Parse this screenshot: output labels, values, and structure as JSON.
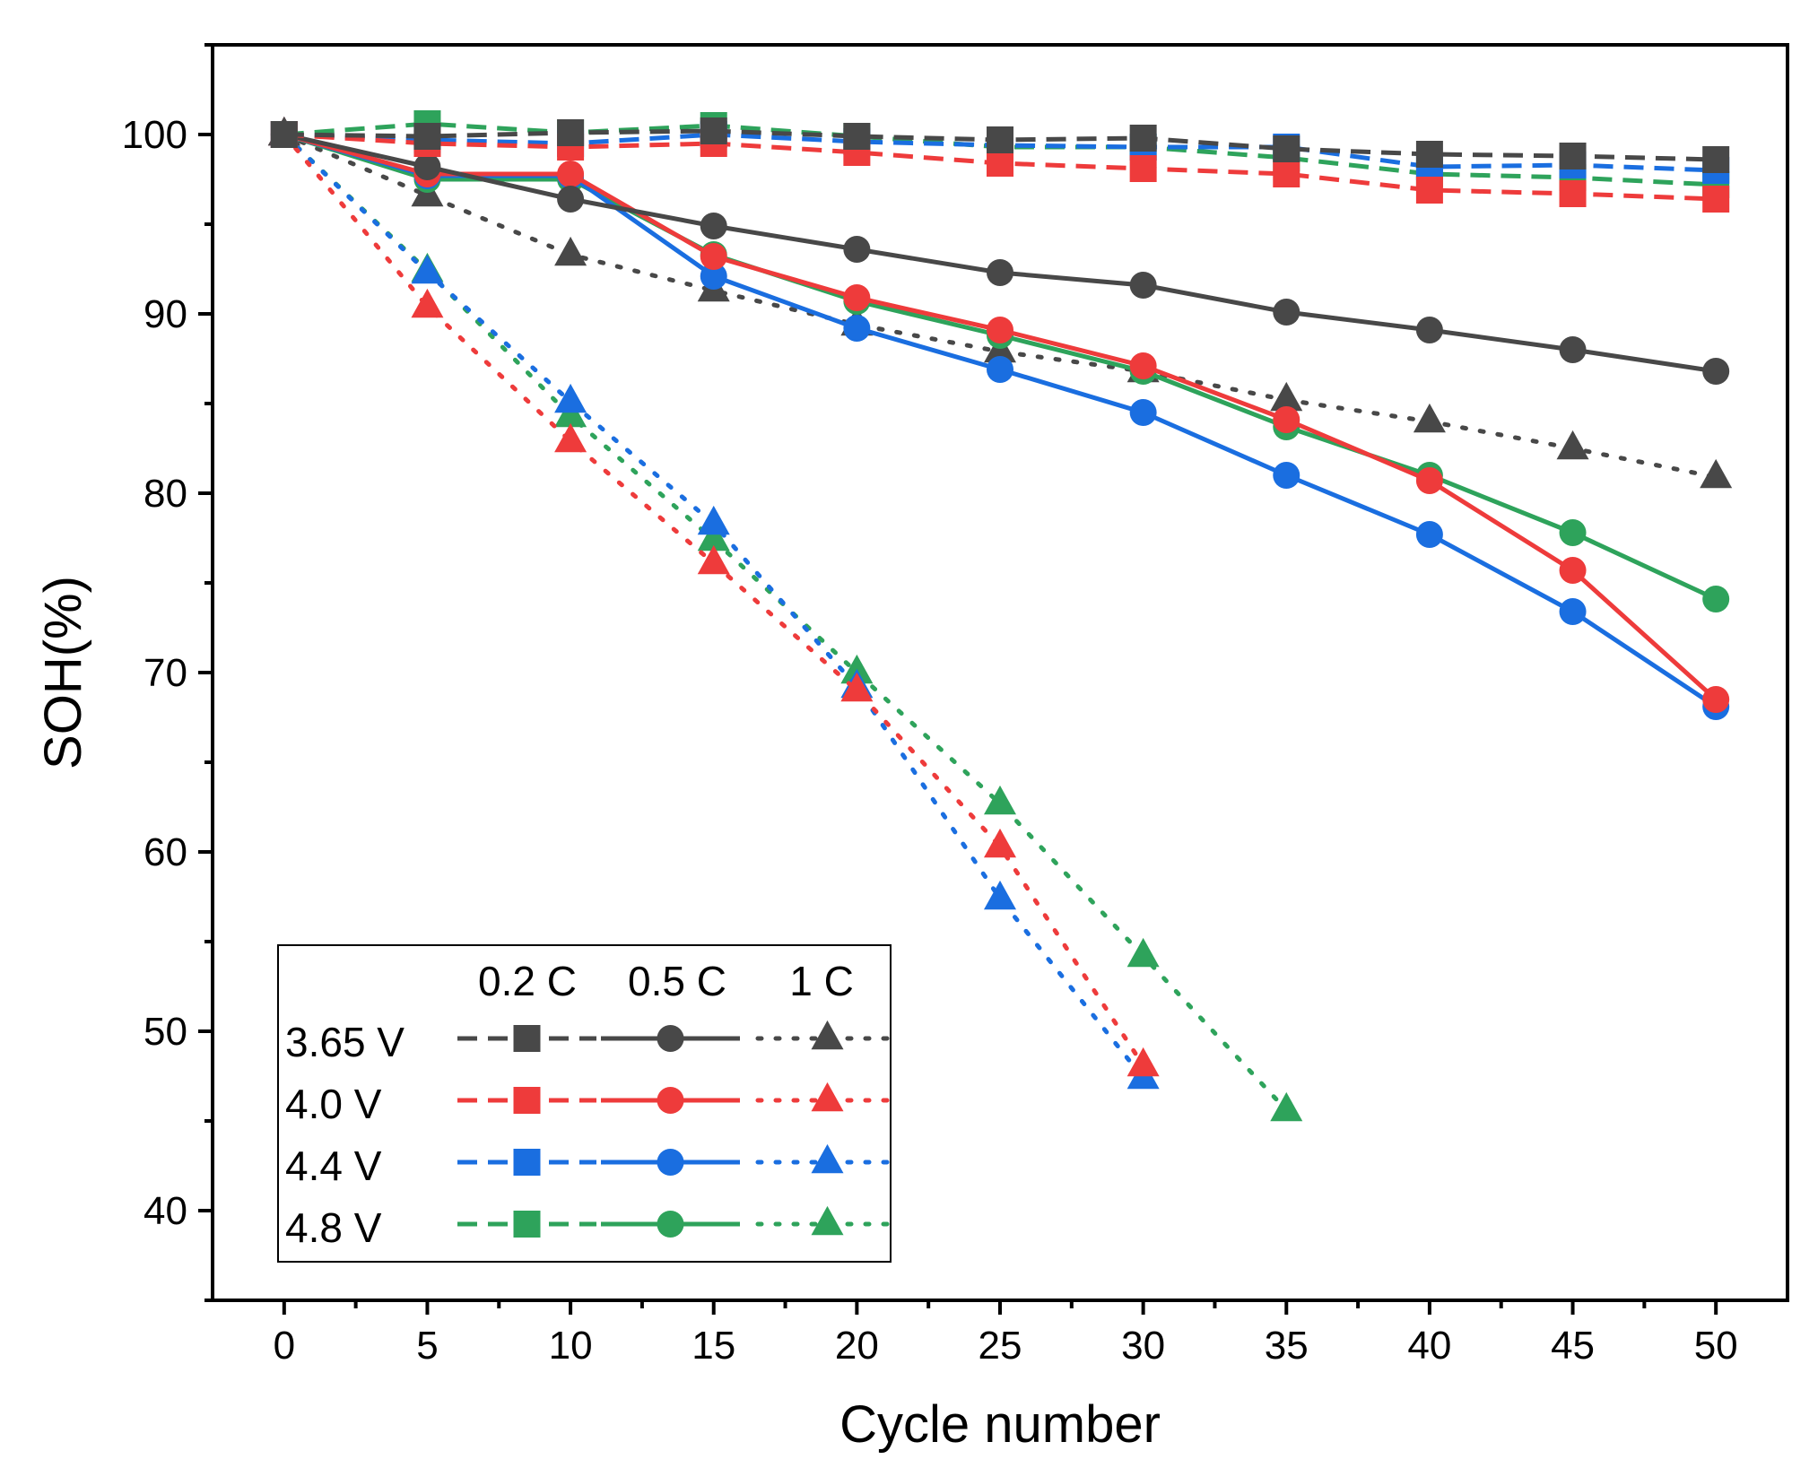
{
  "chart_data": {
    "type": "line",
    "xlabel": "Cycle number",
    "ylabel": "SOH(%)",
    "xlim": [
      -2.5,
      52.5
    ],
    "ylim": [
      35,
      105
    ],
    "x_ticks": [
      0,
      5,
      10,
      15,
      20,
      25,
      30,
      35,
      40,
      45,
      50
    ],
    "y_ticks": [
      40,
      50,
      60,
      70,
      80,
      90,
      100
    ],
    "legend": {
      "location": "bottom-left",
      "rate_headers": [
        "0.2 C",
        "0.5 C",
        "1 C"
      ],
      "voltage_labels": [
        "3.65 V",
        "4.0 V",
        "4.4 V",
        "4.8 V"
      ]
    },
    "colors": {
      "3.65 V": "#484848",
      "4.0 V": "#ee3b3b",
      "4.4 V": "#1a6ee0",
      "4.8 V": "#2ea35b"
    },
    "series": [
      {
        "name": "3.65 V 0.2 C",
        "voltage": "3.65 V",
        "rate": "0.2 C",
        "marker": "square",
        "line": "dashed",
        "x": [
          0,
          5,
          10,
          15,
          20,
          25,
          30,
          35,
          40,
          45,
          50
        ],
        "values": [
          100,
          99.9,
          100.1,
          100.2,
          99.9,
          99.7,
          99.8,
          99.2,
          98.9,
          98.8,
          98.6
        ]
      },
      {
        "name": "4.0 V 0.2 C",
        "voltage": "4.0 V",
        "rate": "0.2 C",
        "marker": "square",
        "line": "dashed",
        "x": [
          0,
          5,
          10,
          15,
          20,
          25,
          30,
          35,
          40,
          45,
          50
        ],
        "values": [
          100,
          99.5,
          99.3,
          99.5,
          99.0,
          98.4,
          98.1,
          97.8,
          96.9,
          96.7,
          96.4
        ]
      },
      {
        "name": "4.4 V 0.2 C",
        "voltage": "4.4 V",
        "rate": "0.2 C",
        "marker": "square",
        "line": "dashed",
        "x": [
          0,
          5,
          10,
          15,
          20,
          25,
          30,
          35,
          40,
          45,
          50
        ],
        "values": [
          100,
          99.7,
          99.5,
          100.0,
          99.6,
          99.4,
          99.3,
          99.3,
          98.2,
          98.3,
          98.0
        ]
      },
      {
        "name": "4.8 V 0.2 C",
        "voltage": "4.8 V",
        "rate": "0.2 C",
        "marker": "square",
        "line": "dashed",
        "x": [
          0,
          5,
          10,
          15,
          20,
          25,
          30,
          35,
          40,
          45,
          50
        ],
        "values": [
          100,
          100.6,
          100.1,
          100.5,
          99.9,
          99.3,
          99.3,
          98.7,
          97.8,
          97.6,
          97.2
        ]
      },
      {
        "name": "3.65 V 0.5 C",
        "voltage": "3.65 V",
        "rate": "0.5 C",
        "marker": "circle",
        "line": "solid",
        "x": [
          0,
          5,
          10,
          15,
          20,
          25,
          30,
          35,
          40,
          45,
          50
        ],
        "values": [
          100,
          98.2,
          96.4,
          94.9,
          93.6,
          92.3,
          91.6,
          90.1,
          89.1,
          88.0,
          86.8
        ]
      },
      {
        "name": "4.0 V 0.5 C",
        "voltage": "4.0 V",
        "rate": "0.5 C",
        "marker": "circle",
        "line": "solid",
        "x": [
          0,
          5,
          10,
          15,
          20,
          25,
          30,
          35,
          40,
          45,
          50
        ],
        "values": [
          100,
          97.8,
          97.8,
          93.2,
          90.9,
          89.1,
          87.1,
          84.1,
          80.7,
          75.7,
          68.5
        ]
      },
      {
        "name": "4.4 V 0.5 C",
        "voltage": "4.4 V",
        "rate": "0.5 C",
        "marker": "circle",
        "line": "solid",
        "x": [
          0,
          5,
          10,
          15,
          20,
          25,
          30,
          35,
          40,
          45,
          50
        ],
        "values": [
          100,
          97.7,
          97.7,
          92.1,
          89.2,
          86.9,
          84.5,
          81.0,
          77.7,
          73.4,
          68.1
        ]
      },
      {
        "name": "4.8 V 0.5 C",
        "voltage": "4.8 V",
        "rate": "0.5 C",
        "marker": "circle",
        "line": "solid",
        "x": [
          0,
          5,
          10,
          15,
          20,
          25,
          30,
          35,
          40,
          45,
          50
        ],
        "values": [
          100,
          97.5,
          97.5,
          93.3,
          90.7,
          88.8,
          86.8,
          83.7,
          81.0,
          77.8,
          74.1
        ]
      },
      {
        "name": "3.65 V 1 C",
        "voltage": "3.65 V",
        "rate": "1 C",
        "marker": "triangle",
        "line": "dotted",
        "x": [
          0,
          5,
          10,
          15,
          20,
          25,
          30,
          35,
          40,
          45,
          50
        ],
        "values": [
          100,
          96.6,
          93.3,
          91.3,
          89.4,
          87.9,
          86.8,
          85.2,
          84.0,
          82.5,
          80.9
        ]
      },
      {
        "name": "4.0 V 1 C",
        "voltage": "4.0 V",
        "rate": "1 C",
        "marker": "triangle",
        "line": "dotted",
        "x": [
          0,
          5,
          10,
          15,
          20,
          25,
          30
        ],
        "values": [
          100,
          90.4,
          82.9,
          76.1,
          69.0,
          60.3,
          48.1
        ]
      },
      {
        "name": "4.4 V 1 C",
        "voltage": "4.4 V",
        "rate": "1 C",
        "marker": "triangle",
        "line": "dotted",
        "x": [
          0,
          5,
          10,
          15,
          20,
          25,
          30
        ],
        "values": [
          100,
          92.3,
          85.1,
          78.3,
          69.2,
          57.4,
          47.4
        ]
      },
      {
        "name": "4.8 V 1 C",
        "voltage": "4.8 V",
        "rate": "1 C",
        "marker": "triangle",
        "line": "dotted",
        "x": [
          0,
          5,
          10,
          15,
          20,
          25,
          30,
          35
        ],
        "values": [
          100,
          92.4,
          84.3,
          77.4,
          70.0,
          62.7,
          54.2,
          45.6
        ]
      }
    ]
  }
}
